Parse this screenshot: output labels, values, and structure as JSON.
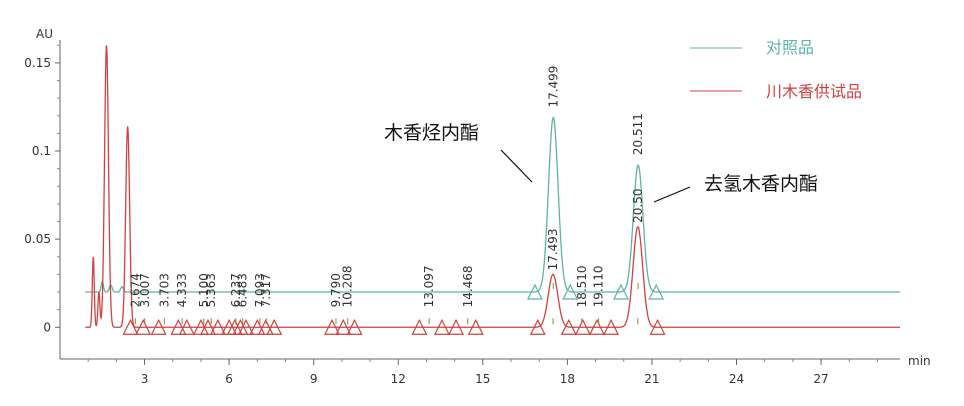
{
  "chart_data": {
    "type": "line",
    "title": "",
    "xlabel": "min",
    "ylabel": "AU",
    "xlim": [
      0,
      29.8
    ],
    "ylim": [
      -0.018,
      0.163
    ],
    "x_ticks": [
      3,
      6,
      9,
      12,
      15,
      18,
      21,
      24,
      27
    ],
    "y_ticks": [
      0,
      0.05,
      0.1,
      0.15
    ],
    "y_tick_labels": [
      "0",
      "0.05",
      "0.1",
      "0.15"
    ],
    "grid": false,
    "legend_position": "top-right",
    "series": [
      {
        "name": "对照品",
        "color": "#5fb3a3",
        "baseline": 0.02,
        "peaks": [
          {
            "x": 1.5,
            "h": 0.006,
            "w": 0.04
          },
          {
            "x": 1.8,
            "h": 0.004,
            "w": 0.05
          },
          {
            "x": 2.2,
            "h": 0.003,
            "w": 0.05
          },
          {
            "x": 17.5,
            "h": 0.099,
            "w": 0.17
          },
          {
            "x": 20.51,
            "h": 0.072,
            "w": 0.17
          }
        ],
        "peak_labels": [
          "17.499",
          "20.511"
        ],
        "markers": [
          16.85,
          18.1,
          19.9,
          21.15
        ]
      },
      {
        "name": "川木香供试品",
        "color": "#d0413f",
        "baseline": 0,
        "peaks": [
          {
            "x": 1.18,
            "h": 0.04,
            "w": 0.035
          },
          {
            "x": 1.38,
            "h": 0.02,
            "w": 0.035
          },
          {
            "x": 1.65,
            "h": 0.16,
            "w": 0.07
          },
          {
            "x": 2.4,
            "h": 0.114,
            "w": 0.07
          },
          {
            "x": 17.49,
            "h": 0.03,
            "w": 0.17
          },
          {
            "x": 20.5,
            "h": 0.057,
            "w": 0.17
          }
        ],
        "peak_labels": [
          "2.674",
          "3.007",
          "3.703",
          "4.333",
          "5.100",
          "5.363",
          "6.237",
          "6.483",
          "7.093",
          "7.317",
          "9.790",
          "10.208",
          "13.097",
          "14.468",
          "17.493",
          "18.510",
          "19.110",
          "20.50"
        ],
        "markers": [
          2.5,
          2.95,
          3.5,
          4.2,
          4.5,
          5.0,
          5.25,
          5.6,
          6.0,
          6.2,
          6.4,
          6.6,
          7.0,
          7.3,
          7.6,
          9.65,
          10.05,
          10.45,
          12.75,
          13.55,
          14.05,
          14.75,
          16.95,
          18.05,
          18.55,
          19.05,
          19.55,
          21.2
        ]
      }
    ],
    "annotations": [
      {
        "text": "木香烃内酯",
        "x": 17.5
      },
      {
        "text": "去氢木香内酯",
        "x": 20.5
      }
    ]
  }
}
